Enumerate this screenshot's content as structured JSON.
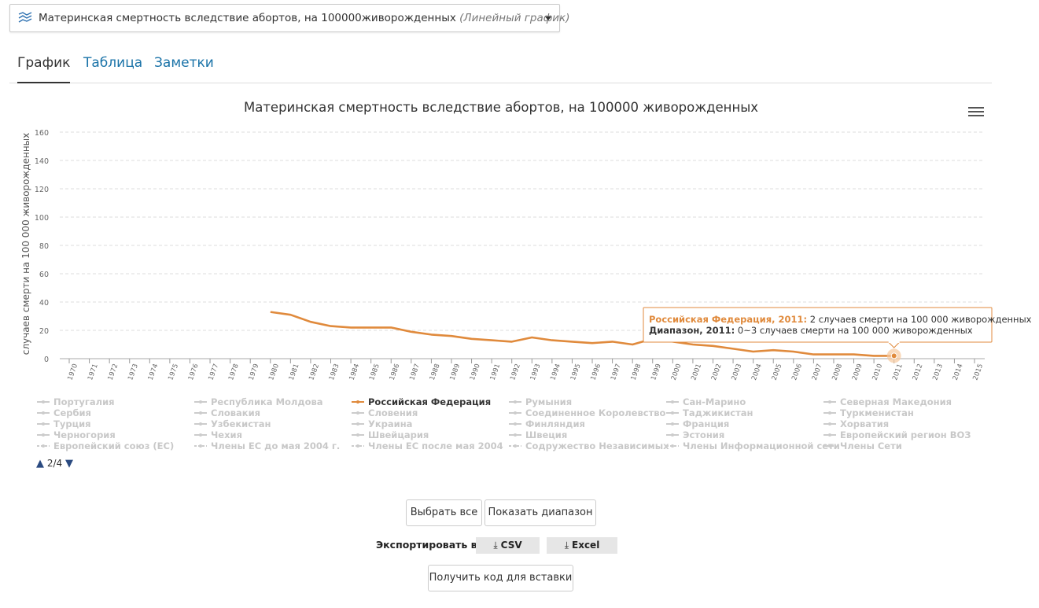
{
  "indicator": {
    "title": "Материнская смертность вследствие абортов, на 100000живорожденных",
    "type_label": "(Линейный график)"
  },
  "tabs": [
    {
      "label": "График",
      "active": true
    },
    {
      "label": "Таблица",
      "active": false
    },
    {
      "label": "Заметки",
      "active": false
    }
  ],
  "chart_data": {
    "type": "line",
    "title": "Материнская смертность вследствие абортов, на 100000 живорожденных",
    "ylabel": "случаев смерти на 100 000 живорожденных",
    "xlabel": "",
    "ylim": [
      0,
      160
    ],
    "yticks": [
      0,
      20,
      40,
      60,
      80,
      100,
      120,
      140,
      160
    ],
    "x": [
      "1970",
      "1971",
      "1972",
      "1973",
      "1974",
      "1975",
      "1976",
      "1977",
      "1978",
      "1979",
      "1980",
      "1981",
      "1982",
      "1983",
      "1984",
      "1985",
      "1986",
      "1987",
      "1988",
      "1989",
      "1990",
      "1991",
      "1992",
      "1993",
      "1994",
      "1995",
      "1996",
      "1997",
      "1998",
      "1999",
      "2000",
      "2001",
      "2002",
      "2003",
      "2004",
      "2005",
      "2006",
      "2007",
      "2008",
      "2009",
      "2010",
      "2011",
      "2012",
      "2013",
      "2014",
      "2015"
    ],
    "grid": true,
    "series": [
      {
        "name": "Российская Федерация",
        "color": "#e08a3c",
        "values": [
          null,
          null,
          null,
          null,
          null,
          null,
          null,
          null,
          null,
          null,
          33,
          31,
          26,
          23,
          22,
          22,
          22,
          19,
          17,
          16,
          14,
          13,
          12,
          15,
          13,
          12,
          11,
          12,
          10,
          14,
          12,
          10,
          9,
          7,
          5,
          6,
          5,
          3,
          3,
          3,
          2,
          2,
          null,
          null,
          null,
          null
        ]
      }
    ],
    "tooltip": {
      "series_label": "Российская Федерация, 2011:",
      "series_text": "2 случаев смерти на 100 000 живорожденных",
      "range_label": "Диапазон, 2011:",
      "range_text": "0~3 случаев смерти на 100 000 живорожденных"
    },
    "legend": {
      "placement": "bottom",
      "active_color": "#e08a3c",
      "inactive_color": "#cccccc",
      "columns": [
        [
          "Португалия",
          "Сербия",
          "Турция",
          "Черногория",
          "Европейский союз (ЕС)"
        ],
        [
          "Республика Молдова",
          "Словакия",
          "Узбекистан",
          "Чехия",
          "Члены ЕС до мая 2004 г."
        ],
        [
          "Российская Федерация",
          "Словения",
          "Украина",
          "Швейцария",
          "Члены ЕС после мая 2004"
        ],
        [
          "Румыния",
          "Соединенное Королевство",
          "Финляндия",
          "Швеция",
          "Содружество Независимых"
        ],
        [
          "Сан-Марино",
          "Таджикистан",
          "Франция",
          "Эстония",
          "Члены Информационной сети"
        ],
        [
          "Северная Македония",
          "Туркменистан",
          "Хорватия",
          "Европейский регион ВОЗ",
          "Члены Сети"
        ]
      ],
      "active": "Российская Федерация",
      "page": "2/4"
    }
  },
  "buttons": {
    "select_all": "Выбрать все",
    "show_range": "Показать диапазон",
    "embed": "Получить код для вставки"
  },
  "export": {
    "label": "Экспортировать в:",
    "csv": "CSV",
    "excel": "Excel"
  }
}
